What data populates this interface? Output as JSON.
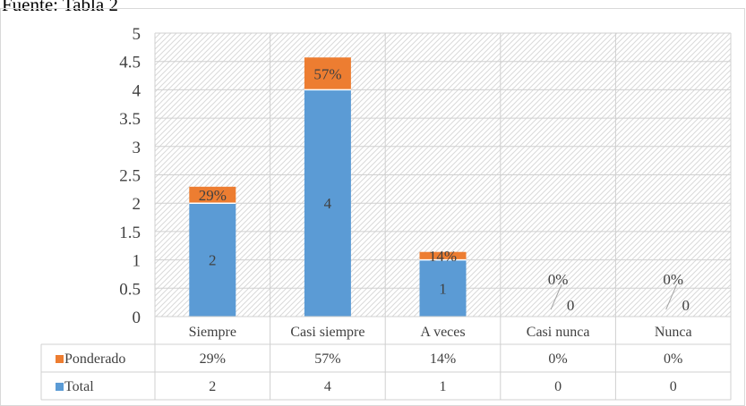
{
  "caption": "Fuente: Tabla 2",
  "colors": {
    "total": "#5b9bd5",
    "ponderado": "#ed7d31",
    "grid": "#d0d0d0",
    "text": "#404040"
  },
  "chart_data": {
    "type": "bar",
    "stacked": true,
    "categories": [
      "Siempre",
      "Casi siempre",
      "A veces",
      "Casi nunca",
      "Nunca"
    ],
    "ylim": [
      0,
      5
    ],
    "yticks": [
      "0",
      "0.5",
      "1",
      "1.5",
      "2",
      "2.5",
      "3",
      "3.5",
      "4",
      "4.5",
      "5"
    ],
    "background": "diagonal hatch",
    "series": [
      {
        "name": "Total",
        "values": [
          2,
          4,
          1,
          0,
          0
        ],
        "labels": [
          "2",
          "4",
          "1",
          "0",
          "0"
        ]
      },
      {
        "name": "Ponderado",
        "values": [
          0.29,
          0.57,
          0.14,
          0,
          0
        ],
        "labels": [
          "29%",
          "57%",
          "14%",
          "0%",
          "0%"
        ]
      }
    ],
    "data_table": [
      {
        "name": "Ponderado",
        "cells": [
          "29%",
          "57%",
          "14%",
          "0%",
          "0%"
        ]
      },
      {
        "name": "Total",
        "cells": [
          "2",
          "4",
          "1",
          "0",
          "0"
        ]
      }
    ]
  }
}
